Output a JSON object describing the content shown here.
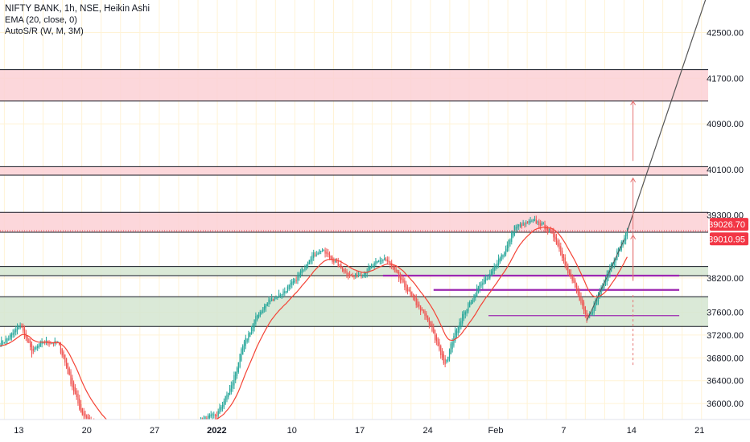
{
  "legend": {
    "title": "NIFTY BANK, 1h, NSE, Heikin Ashi",
    "ema": "EMA (20, close, 0)",
    "autosr": "AutoS/R (W, M, 3M)"
  },
  "colors": {
    "up": "#26a69a",
    "down": "#ef5350",
    "ema": "#f44336",
    "resistance_zone": "#fbd0d5",
    "support_zone": "#d3e5d0",
    "pivot_line": "#9c27b0",
    "grid": "#fff3d6",
    "price_badge_1": "#f23645",
    "price_badge_2": "#f23645"
  },
  "chart_data": {
    "type": "candlestick",
    "symbol": "NIFTY BANK",
    "interval": "1h",
    "exchange": "NSE",
    "style": "Heikin Ashi",
    "x_ticks": [
      {
        "label": "13",
        "bar": 13
      },
      {
        "label": "20",
        "bar": 60
      },
      {
        "label": "27",
        "bar": 107
      },
      {
        "label": "2022",
        "bar": 150
      },
      {
        "label": "10",
        "bar": 202
      },
      {
        "label": "17",
        "bar": 249
      },
      {
        "label": "24",
        "bar": 296
      },
      {
        "label": "Feb",
        "bar": 343
      },
      {
        "label": "7",
        "bar": 390
      },
      {
        "label": "14",
        "bar": 437
      },
      {
        "label": "21",
        "bar": 484
      }
    ],
    "x_range_bars": [
      0,
      490
    ],
    "y_ticks": [
      "42500.00",
      "41700.00",
      "40900.00",
      "40100.00",
      "39300.00",
      "38200.00",
      "37600.00",
      "37200.00",
      "36800.00",
      "36400.00",
      "36000.00"
    ],
    "y_range": [
      35720,
      43070
    ],
    "price_labels": [
      {
        "value": 39026.7,
        "text": "39026.70"
      },
      {
        "value": 39010.95,
        "text": "39010.95"
      }
    ],
    "zones": [
      {
        "kind": "resistance",
        "low": 41300,
        "high": 41850
      },
      {
        "kind": "resistance",
        "low": 40000,
        "high": 40150
      },
      {
        "kind": "resistance",
        "low": 39000,
        "high": 39350
      },
      {
        "kind": "support",
        "low": 38240,
        "high": 38400
      },
      {
        "kind": "support",
        "low": 37350,
        "high": 37870
      }
    ],
    "pivot_lines": [
      {
        "value": 38240,
        "from_bar": 265,
        "to_bar": 470
      },
      {
        "value": 37990,
        "from_bar": 300,
        "to_bar": 470
      },
      {
        "value": 37540,
        "from_bar": 338,
        "to_bar": 470
      }
    ],
    "series": [
      {
        "name": "EMA (20, close, 0)",
        "values": "computed from candles"
      }
    ],
    "candles_ohlc": [],
    "key_points": [
      [
        0,
        37050
      ],
      [
        6,
        37150
      ],
      [
        14,
        37380
      ],
      [
        22,
        36900
      ],
      [
        30,
        37080
      ],
      [
        40,
        37050
      ],
      [
        44,
        36800
      ],
      [
        50,
        36300
      ],
      [
        56,
        35850
      ],
      [
        70,
        35500
      ],
      [
        90,
        35300
      ],
      [
        120,
        35550
      ],
      [
        150,
        35800
      ],
      [
        160,
        36300
      ],
      [
        168,
        37000
      ],
      [
        178,
        37550
      ],
      [
        186,
        37800
      ],
      [
        196,
        37950
      ],
      [
        204,
        38150
      ],
      [
        214,
        38550
      ],
      [
        222,
        38700
      ],
      [
        230,
        38520
      ],
      [
        236,
        38370
      ],
      [
        244,
        38210
      ],
      [
        252,
        38300
      ],
      [
        260,
        38450
      ],
      [
        266,
        38550
      ],
      [
        272,
        38350
      ],
      [
        280,
        38050
      ],
      [
        288,
        37750
      ],
      [
        296,
        37450
      ],
      [
        304,
        36950
      ],
      [
        308,
        36650
      ],
      [
        314,
        37200
      ],
      [
        320,
        37550
      ],
      [
        326,
        37800
      ],
      [
        332,
        38100
      ],
      [
        338,
        38200
      ],
      [
        344,
        38500
      ],
      [
        350,
        38700
      ],
      [
        356,
        39100
      ],
      [
        364,
        39150
      ],
      [
        370,
        39200
      ],
      [
        378,
        39080
      ],
      [
        384,
        38900
      ],
      [
        390,
        38500
      ],
      [
        396,
        38150
      ],
      [
        402,
        37750
      ],
      [
        406,
        37450
      ],
      [
        410,
        37650
      ],
      [
        416,
        38050
      ],
      [
        422,
        38400
      ],
      [
        428,
        38700
      ],
      [
        434,
        39020
      ]
    ]
  }
}
